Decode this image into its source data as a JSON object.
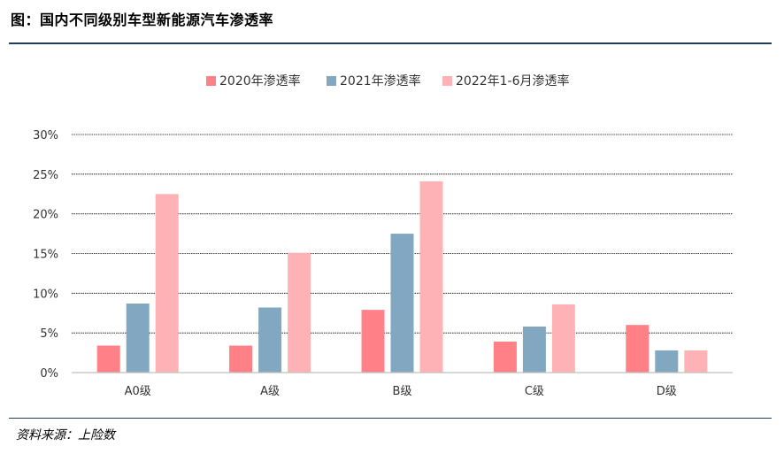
{
  "figure": {
    "title": "图：国内不同级别车型新能源汽车渗透率",
    "source": "资料来源：上险数"
  },
  "colors": {
    "series": [
      "#ff8086",
      "#82a7c0",
      "#ffb2b6"
    ],
    "gridline": "#000000",
    "axis": "#bfbfbf",
    "rule": "#1f3d5c"
  },
  "chart_data": {
    "type": "bar",
    "categories": [
      "A0级",
      "A级",
      "B级",
      "C级",
      "D级"
    ],
    "series": [
      {
        "name": "2020年渗透率",
        "values": [
          3.4,
          3.4,
          7.9,
          3.9,
          6.0
        ]
      },
      {
        "name": "2021年渗透率",
        "values": [
          8.7,
          8.2,
          17.5,
          5.8,
          2.8
        ]
      },
      {
        "name": "2022年1-6月渗透率",
        "values": [
          22.5,
          15.1,
          24.1,
          8.6,
          2.8
        ]
      }
    ],
    "yticks": [
      "0%",
      "5%",
      "10%",
      "15%",
      "20%",
      "25%",
      "30%"
    ],
    "ylim": [
      0,
      30
    ],
    "grid": true,
    "legend_position": "top"
  }
}
